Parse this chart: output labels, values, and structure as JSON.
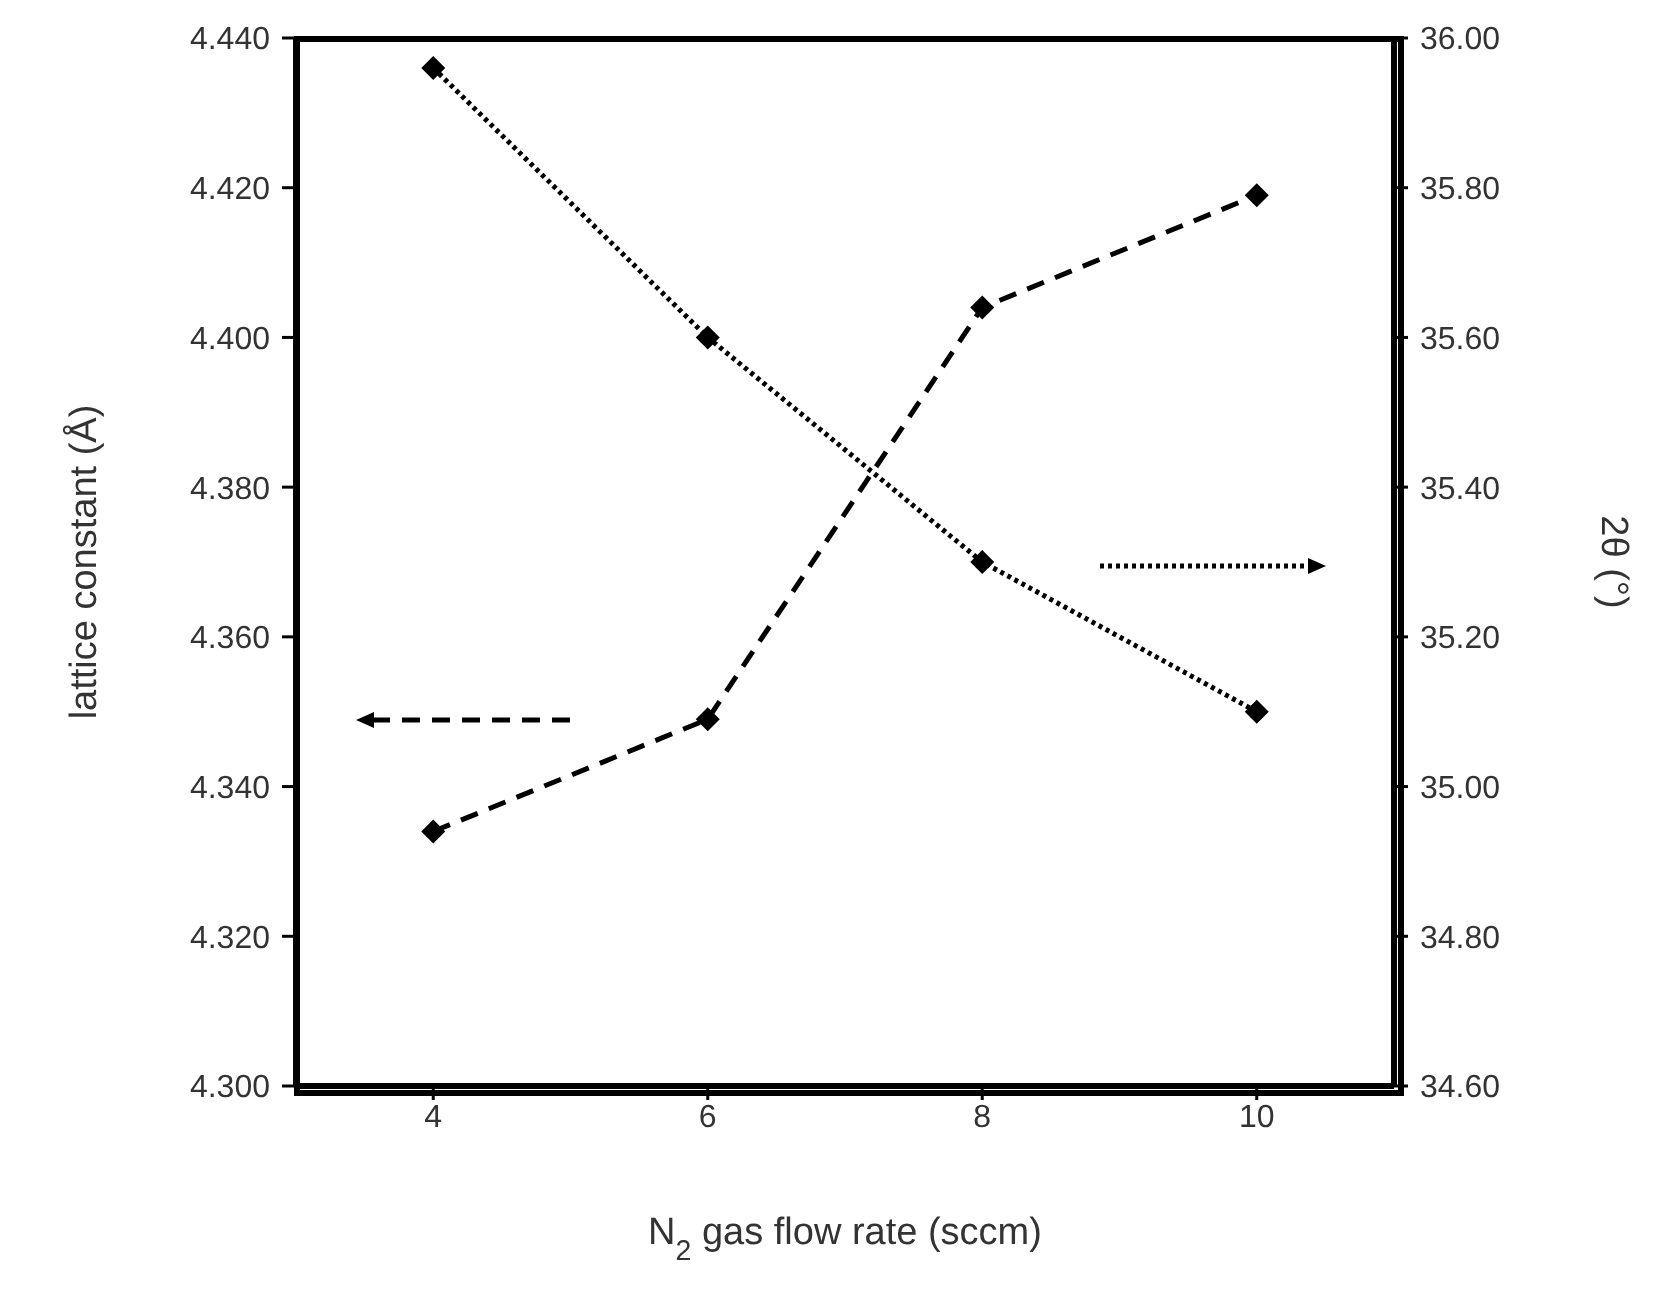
{
  "chart_data": {
    "type": "line",
    "xlabel": "N$_{2}$ gas flow rate (sccm)",
    "ylabel": "lattice constant (Å)",
    "y2label": "2θ (°)",
    "x": [
      4,
      6,
      8,
      10
    ],
    "xlim": [
      3,
      11
    ],
    "xticks": [
      4,
      6,
      8,
      10
    ],
    "ylim": [
      4.3,
      4.44
    ],
    "yticks": [
      {
        "value": 4.3,
        "label": "4.300"
      },
      {
        "value": 4.32,
        "label": "4.320"
      },
      {
        "value": 4.34,
        "label": "4.340"
      },
      {
        "value": 4.36,
        "label": "4.360"
      },
      {
        "value": 4.38,
        "label": "4.380"
      },
      {
        "value": 4.4,
        "label": "4.400"
      },
      {
        "value": 4.42,
        "label": "4.420"
      },
      {
        "value": 4.44,
        "label": "4.440"
      }
    ],
    "y2lim": [
      34.6,
      36
    ],
    "y2ticks": [
      {
        "value": 34.6,
        "label": "34.60"
      },
      {
        "value": 34.8,
        "label": "34.80"
      },
      {
        "value": 35,
        "label": "35.00"
      },
      {
        "value": 35.2,
        "label": "35.20"
      },
      {
        "value": 35.4,
        "label": "35.40"
      },
      {
        "value": 35.6,
        "label": "35.60"
      },
      {
        "value": 35.8,
        "label": "35.80"
      },
      {
        "value": 36,
        "label": "36.00"
      }
    ],
    "series": [
      {
        "color": "#000000",
        "values": [
          4.334,
          4.349,
          4.404,
          4.419
        ],
        "line_style": "dashed"
      },
      {
        "color": "#000000",
        "values": [
          35.96,
          35.6,
          35.3,
          35.1
        ],
        "line_style": "dotted",
        "axis": "y2"
      }
    ],
    "marker": "diamond",
    "grid": false,
    "legend": false
  }
}
